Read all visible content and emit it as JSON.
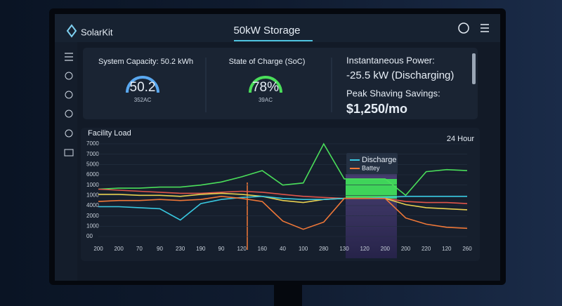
{
  "header": {
    "brand": "SolarKit",
    "title": "50kW Storage"
  },
  "cards": {
    "capacity": {
      "label": "System Capacity: 50.2 kWh",
      "value": "50.2",
      "sub": "352AC"
    },
    "soc": {
      "label": "State of Charge (SoC)",
      "value": "78%",
      "sub": "39AC"
    },
    "power": {
      "label": "Instantaneous Power:",
      "value": "-25.5 kW (Discharging)",
      "savings_label": "Peak Shaving Savings:",
      "savings_value": "$1,250/mo"
    }
  },
  "chart": {
    "type": "line",
    "title": "Facility Load",
    "range_label": "24 Hour",
    "categories": [
      "200",
      "200",
      "70",
      "90",
      "230",
      "190",
      "90",
      "120",
      "160",
      "40",
      "100",
      "280",
      "130",
      "120",
      "200",
      "200",
      "220",
      "120",
      "260"
    ],
    "ylim": [
      0,
      9.5
    ],
    "yticks": [
      {
        "value": 0,
        "label": "00"
      },
      {
        "value": 1,
        "label": "1000"
      },
      {
        "value": 2,
        "label": "2000"
      },
      {
        "value": 3,
        "label": "4000"
      },
      {
        "value": 4,
        "label": "1000"
      },
      {
        "value": 5,
        "label": "1000"
      },
      {
        "value": 6,
        "label": "6000"
      },
      {
        "value": 7,
        "label": "5000"
      },
      {
        "value": 8,
        "label": "7000"
      },
      {
        "value": 9,
        "label": "7000"
      }
    ],
    "series": [
      {
        "color": "#4ade5a",
        "values": [
          4.6,
          4.7,
          4.7,
          4.8,
          4.8,
          5.0,
          5.3,
          5.8,
          6.4,
          5.0,
          5.2,
          9.0,
          5.6,
          5.6,
          5.6,
          4.0,
          6.3,
          6.5,
          6.4
        ]
      },
      {
        "color": "#e0554a",
        "values": [
          4.6,
          4.5,
          4.4,
          4.3,
          4.2,
          4.2,
          4.3,
          4.4,
          4.3,
          4.1,
          3.9,
          3.8,
          3.7,
          3.7,
          3.7,
          3.4,
          3.3,
          3.3,
          3.2
        ]
      },
      {
        "color": "#e8d050",
        "values": [
          4.1,
          4.1,
          4.0,
          4.0,
          3.9,
          4.1,
          4.2,
          4.1,
          3.9,
          3.5,
          3.3,
          3.6,
          3.7,
          3.7,
          3.7,
          3.1,
          2.8,
          2.7,
          2.6
        ]
      },
      {
        "name": "Discharge",
        "color": "#38c8e0",
        "values": [
          2.9,
          2.9,
          2.8,
          2.7,
          1.6,
          3.2,
          3.6,
          3.8,
          3.9,
          3.7,
          3.6,
          3.6,
          3.7,
          3.7,
          3.8,
          3.9,
          3.9,
          3.9,
          3.9
        ]
      },
      {
        "name": "Battey",
        "color": "#f07838",
        "values": [
          3.4,
          3.5,
          3.5,
          3.6,
          3.5,
          3.6,
          3.9,
          3.7,
          3.4,
          1.5,
          0.7,
          1.4,
          3.7,
          3.7,
          3.7,
          1.8,
          1.2,
          0.9,
          0.8
        ]
      }
    ]
  }
}
